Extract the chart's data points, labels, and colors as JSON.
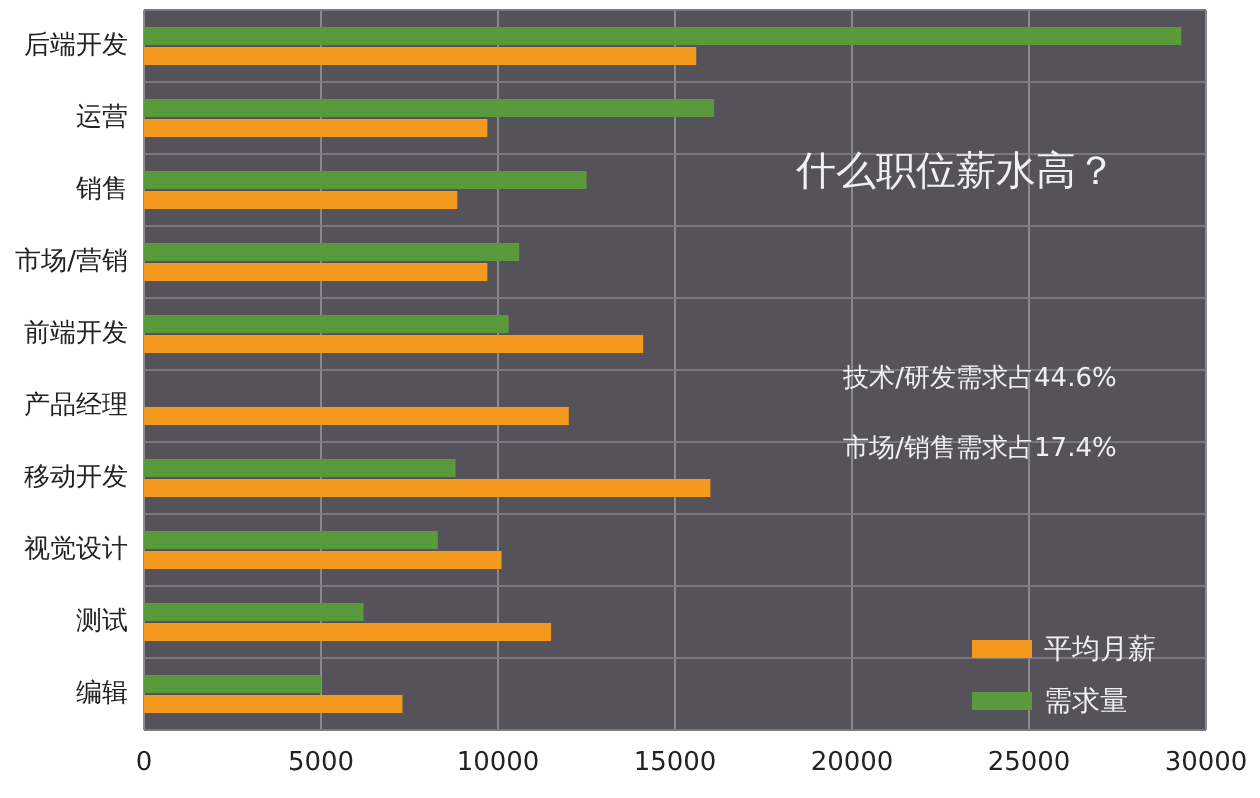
{
  "chart_data": {
    "type": "bar",
    "orientation": "horizontal",
    "categories": [
      "后端开发",
      "运营",
      "销售",
      "市场/营销",
      "前端开发",
      "产品经理",
      "移动开发",
      "视觉设计",
      "测试",
      "编辑"
    ],
    "series": [
      {
        "name": "平均月薪",
        "color": "#f39a1e",
        "values": [
          15600,
          9700,
          8850,
          9700,
          14100,
          12000,
          16000,
          10100,
          11500,
          7300
        ]
      },
      {
        "name": "需求量",
        "color": "#5a9a3c",
        "values": [
          29300,
          16100,
          12500,
          10600,
          10300,
          null,
          8800,
          8300,
          6200,
          5000
        ]
      }
    ],
    "xlim": [
      0,
      30000
    ],
    "xticks": [
      0,
      5000,
      10000,
      15000,
      20000,
      25000,
      30000
    ],
    "grid": true,
    "legend": "bottom right",
    "annotations": [
      "什么职位薪水高？",
      "技术/研发需求占44.6%",
      "市场/销售需求占17.4%"
    ]
  }
}
